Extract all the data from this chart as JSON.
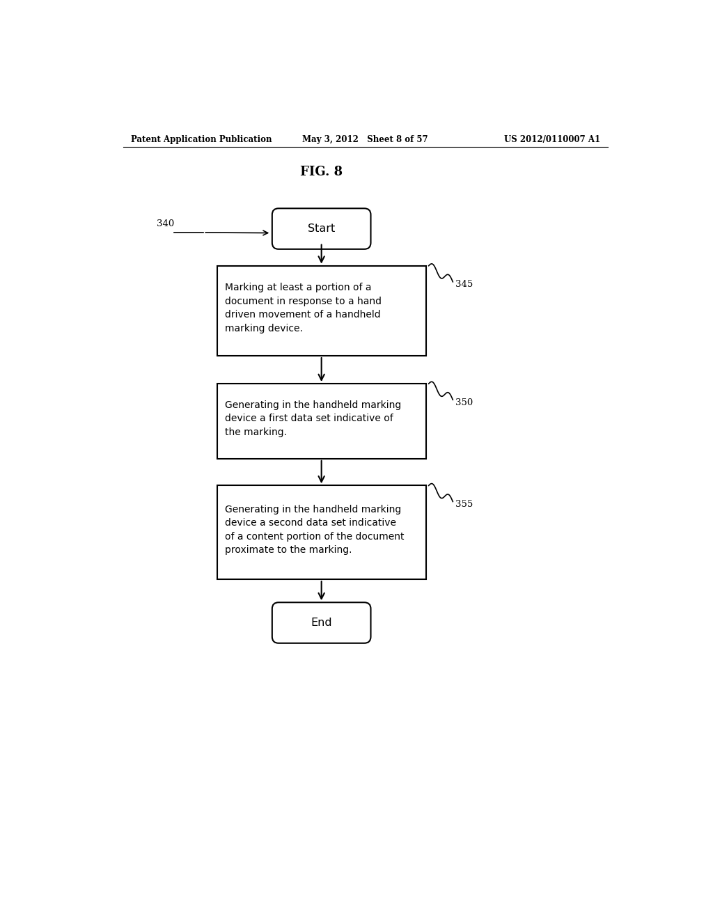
{
  "header_left": "Patent Application Publication",
  "header_mid": "May 3, 2012   Sheet 8 of 57",
  "header_right": "US 2012/0110007 A1",
  "fig_title": "FIG. 8",
  "start_label": "Start",
  "end_label": "End",
  "box1_text": "Marking at least a portion of a\ndocument in response to a hand\ndriven movement of a handheld\nmarking device.",
  "box2_text": "Generating in the handheld marking\ndevice a first data set indicative of\nthe marking.",
  "box3_text": "Generating in the handheld marking\ndevice a second data set indicative\nof a content portion of the document\nproximate to the marking.",
  "label_340": "340",
  "label_345": "345",
  "label_350": "350",
  "label_355": "355",
  "bg_color": "#ffffff",
  "box_edge_color": "#000000",
  "text_color": "#000000",
  "arrow_color": "#000000"
}
